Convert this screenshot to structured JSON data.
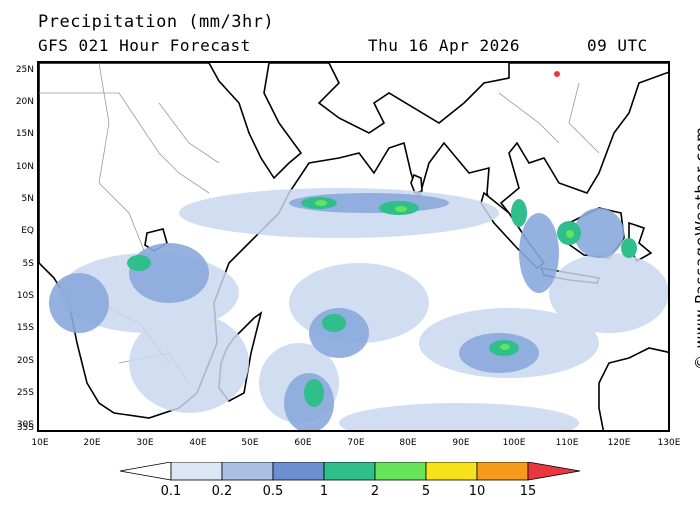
{
  "title": "Precipitation (mm/3hr)",
  "subtitle": "GFS 021 Hour Forecast",
  "date": "Thu 16 Apr 2026",
  "time": "09 UTC",
  "credit": "© www.PassageWeather.com",
  "lat_labels": [
    "25N",
    "20N",
    "15N",
    "10N",
    "5N",
    "EQ",
    "5S",
    "10S",
    "15S",
    "20S",
    "25S",
    "30S",
    "35S"
  ],
  "lon_labels": [
    "10E",
    "20E",
    "30E",
    "40E",
    "50E",
    "60E",
    "70E",
    "80E",
    "90E",
    "100E",
    "110E",
    "120E",
    "130E"
  ],
  "legend": {
    "ticks": [
      "0.1",
      "0.2",
      "0.5",
      "1",
      "2",
      "5",
      "10",
      "15"
    ],
    "colors": [
      "#ffffff",
      "#dde6f5",
      "#a9c0e3",
      "#6b8fd0",
      "#2fbf8a",
      "#66e35a",
      "#f5e21a",
      "#f59a1a",
      "#e8383d"
    ]
  },
  "colors": {
    "land_outline": "#000000",
    "border": "#9a9a9a",
    "light_precip": "#c9d8ef",
    "moderate_precip": "#8aa9dc",
    "heavy_precip": "#2fbf8a",
    "very_heavy_precip": "#66e35a"
  }
}
